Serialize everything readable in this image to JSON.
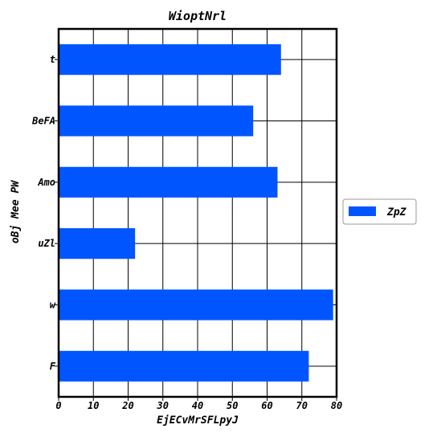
{
  "chart_data": {
    "type": "bar",
    "orientation": "horizontal",
    "title": "WioptNrl",
    "xlabel": "EjECvMrSFLpyJ",
    "ylabel": "oBj Mee PW",
    "categories": [
      "t",
      "BeFA",
      "Amo",
      "uZl",
      "w",
      "F"
    ],
    "series": [
      {
        "name": "ZpZ",
        "values": [
          64,
          56,
          63,
          22,
          79,
          72
        ]
      }
    ],
    "xlim": [
      0,
      80
    ],
    "xticks": [
      0,
      10,
      20,
      30,
      40,
      50,
      60,
      70,
      80
    ],
    "grid": true,
    "legend": "right",
    "bar_color": "#0055ff"
  }
}
